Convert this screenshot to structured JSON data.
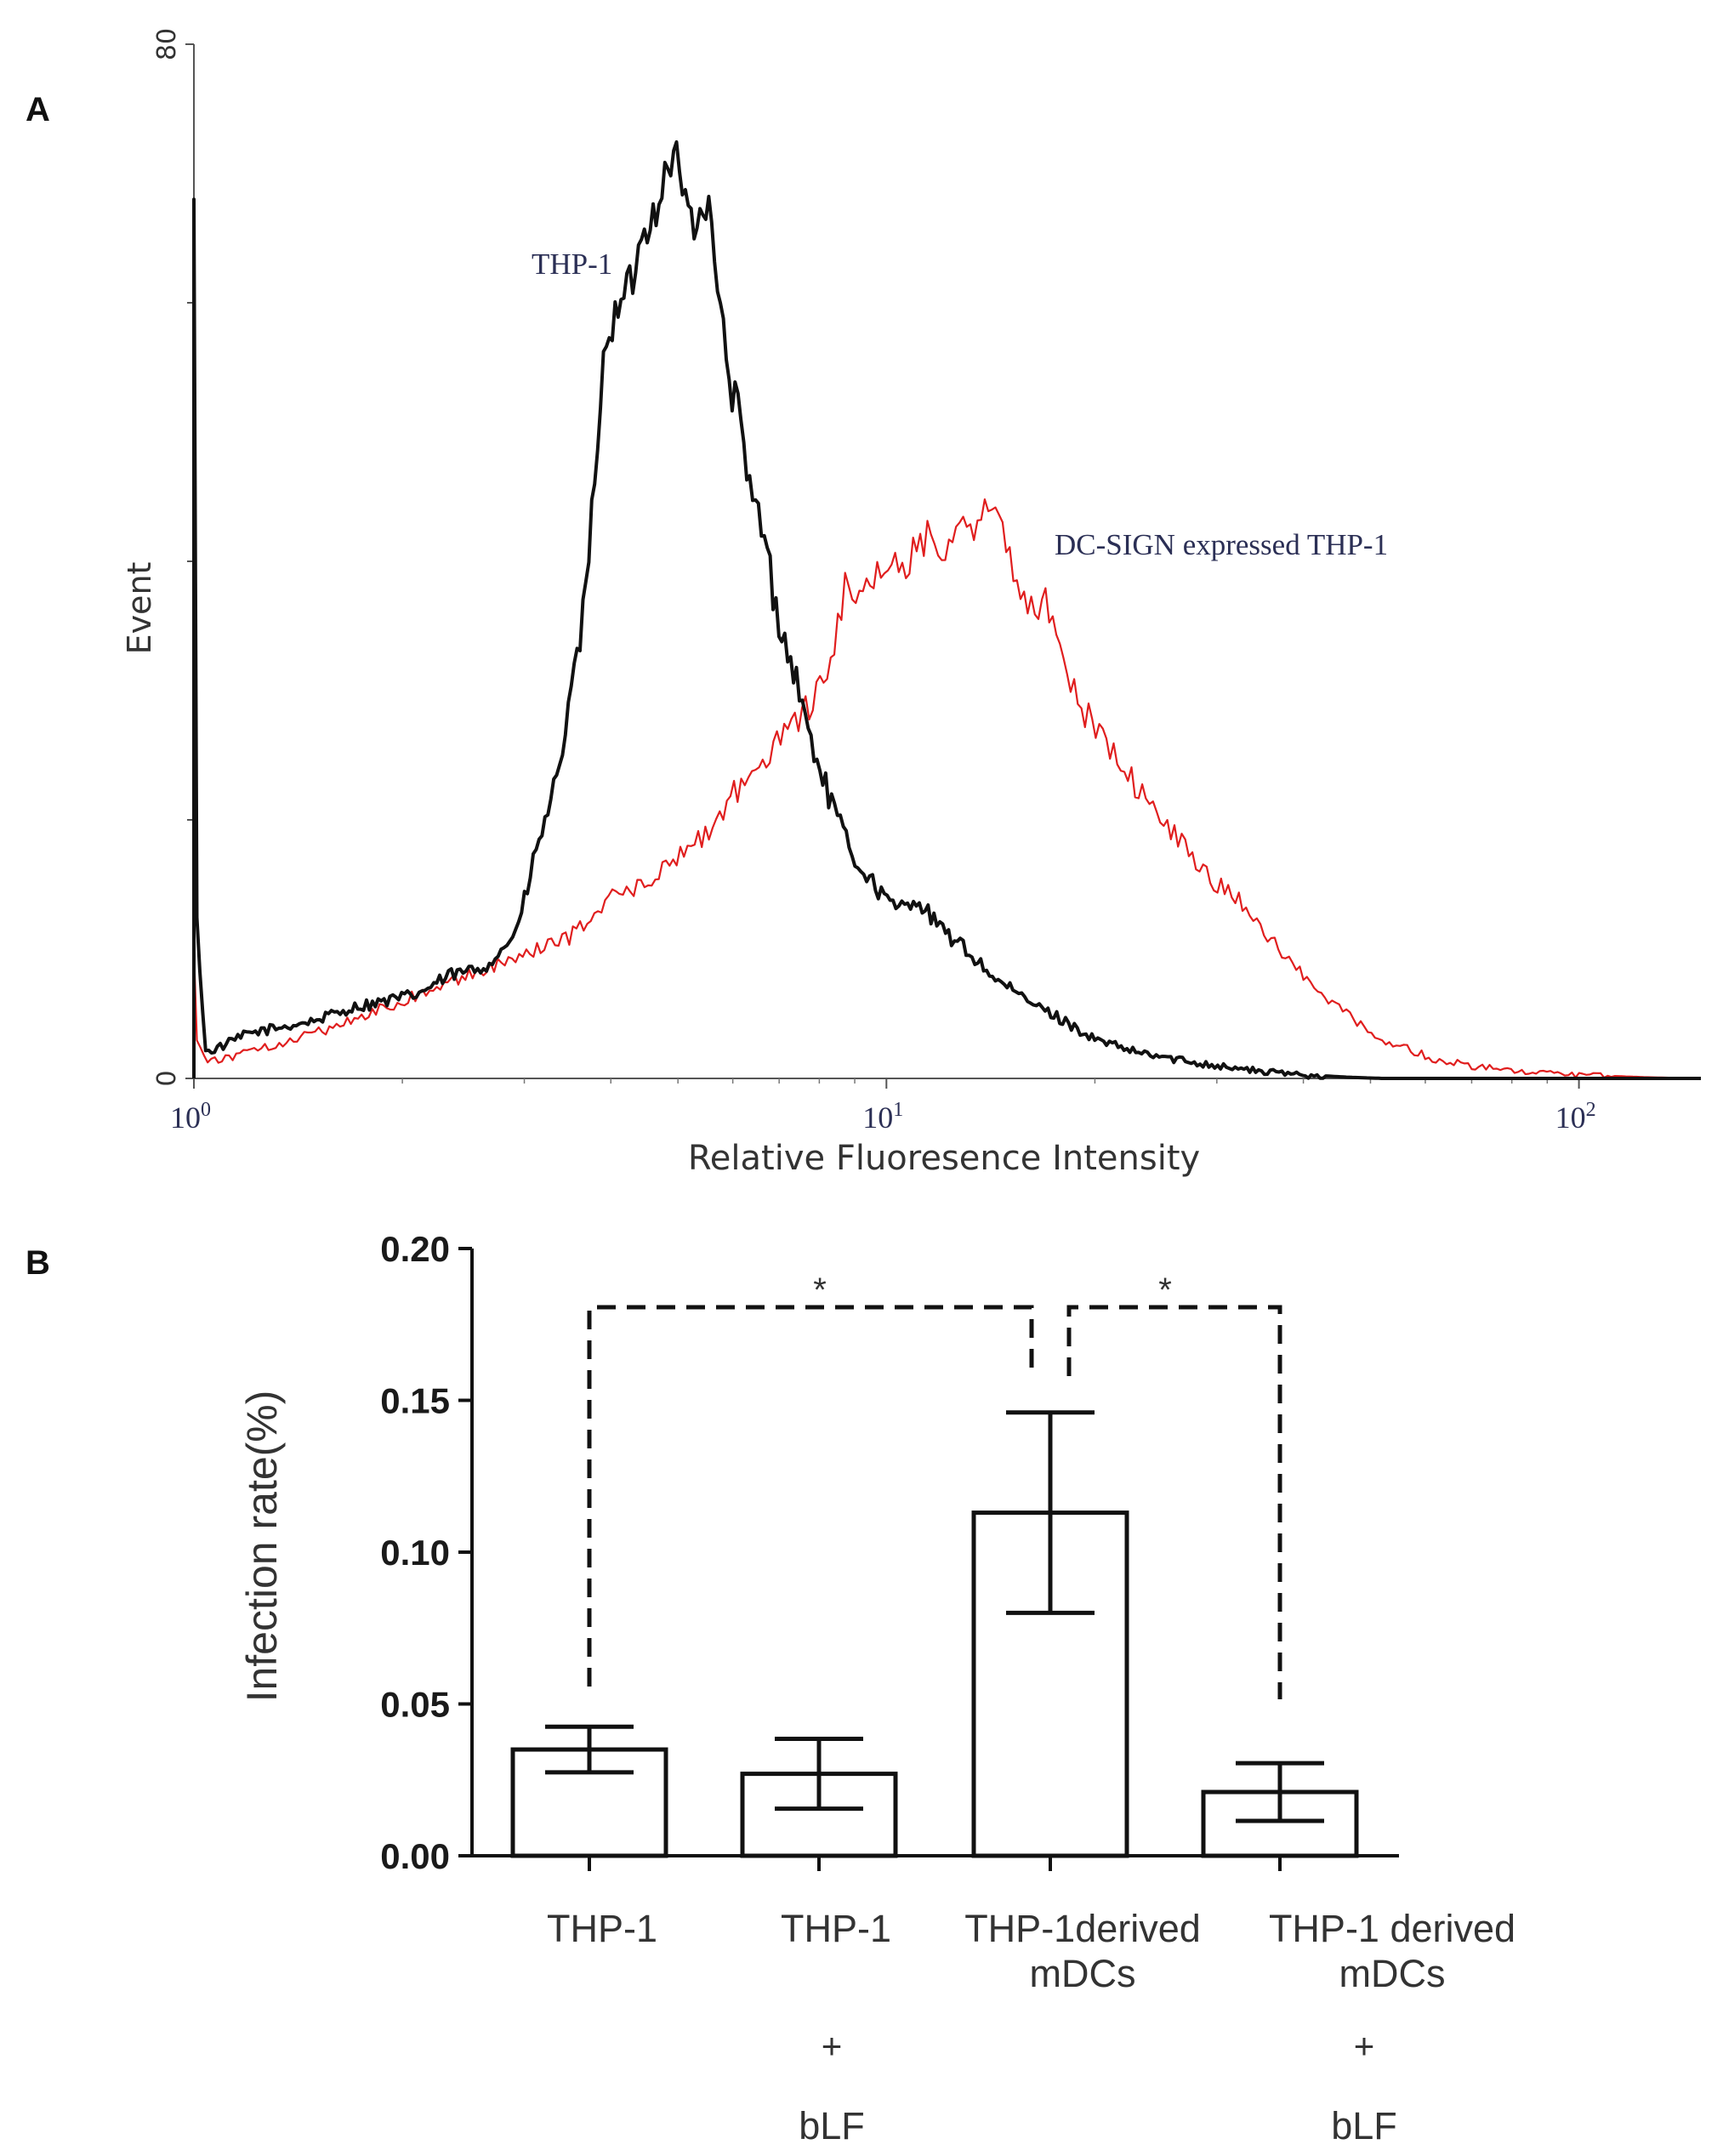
{
  "chart_data": [
    {
      "panel": "A",
      "type": "line",
      "title": "",
      "xlabel": "Relative Fluoresence Intensity",
      "ylabel": "Event",
      "x_scale": "log",
      "xlim": [
        1,
        150
      ],
      "ylim": [
        0,
        80
      ],
      "x_tick_labels": [
        {
          "value": 1,
          "base": "10",
          "exp": "0"
        },
        {
          "value": 10,
          "base": "10",
          "exp": "1"
        },
        {
          "value": 100,
          "base": "10",
          "exp": "2"
        }
      ],
      "y_tick_labels": [
        {
          "value": 0,
          "label": "0"
        },
        {
          "value": 80,
          "label": "80"
        }
      ],
      "y_minor_ticks": [
        20,
        40,
        60
      ],
      "series": [
        {
          "name": "THP-1",
          "color": "#111111",
          "x": [
            1.0,
            1.01,
            1.04,
            1.1,
            1.2,
            1.35,
            1.5,
            1.7,
            1.9,
            2.1,
            2.35,
            2.6,
            2.8,
            2.95,
            3.1,
            3.3,
            3.5,
            3.7,
            3.8,
            3.95,
            4.1,
            4.3,
            4.5,
            4.65,
            4.8,
            4.95,
            5.1,
            5.3,
            5.5,
            5.7,
            5.9,
            6.1,
            6.3,
            6.6,
            6.9,
            7.1,
            7.4,
            7.7,
            8.0,
            8.5,
            9.0,
            9.6,
            10.3,
            11.0,
            12.0,
            13.0,
            14.5,
            16.0,
            18.0,
            20.0,
            23.0,
            26.0,
            30.0,
            35.0,
            40.0,
            46.0,
            52.0,
            60.0
          ],
          "y": [
            68,
            12,
            2,
            2.5,
            3.5,
            4,
            4.5,
            5.5,
            6,
            6.5,
            8,
            8.5,
            10,
            12,
            17,
            22,
            29,
            38,
            48,
            58,
            59,
            62,
            66,
            67.5,
            70,
            72,
            68,
            66,
            68,
            62,
            54,
            52,
            46,
            43,
            37,
            34,
            31,
            27,
            24,
            20,
            17,
            15,
            13,
            14,
            11.5,
            10,
            7.5,
            6,
            4.5,
            3,
            2,
            1.5,
            1,
            0.5,
            0.3,
            0.1,
            0,
            0
          ]
        },
        {
          "name": "DC-SIGN expressed THP-1",
          "color": "#e01e1e",
          "x": [
            1.0,
            1.01,
            1.04,
            1.1,
            1.3,
            1.6,
            2.0,
            2.5,
            3.0,
            3.5,
            4.0,
            4.5,
            5.0,
            5.5,
            6.0,
            6.5,
            7.0,
            7.5,
            8.0,
            8.4,
            8.7,
            9.0,
            9.5,
            10.0,
            10.5,
            11.0,
            11.5,
            12.0,
            12.5,
            13.0,
            13.5,
            14.0,
            14.5,
            15.0,
            15.5,
            16.0,
            16.5,
            17.0,
            17.5,
            18.0,
            19.0,
            20.0,
            22.0,
            24.0,
            26.0,
            28.0,
            30.0,
            32.0,
            35.0,
            38.0,
            42.0,
            46.0,
            50.0,
            55.0,
            62.0,
            70.0,
            80.0,
            100.0,
            125.0,
            150.0
          ],
          "y": [
            10,
            3,
            1.5,
            1.5,
            2.5,
            4,
            6,
            8,
            9.5,
            11,
            14,
            15,
            17,
            19,
            22,
            24,
            26,
            28,
            30,
            34,
            38,
            36,
            38,
            40,
            39,
            41,
            42,
            41,
            43,
            44,
            42,
            45,
            43,
            41,
            38,
            37,
            36,
            38,
            34,
            32,
            29,
            27,
            24,
            21,
            19,
            17,
            15,
            14,
            11.5,
            9,
            7,
            5,
            3.5,
            2.5,
            1.5,
            1,
            0.5,
            0.3,
            0.1,
            0
          ]
        }
      ],
      "annotations": [
        {
          "text": "THP-1",
          "series": "THP-1"
        },
        {
          "text": "DC-SIGN expressed THP-1",
          "series": "DC-SIGN expressed THP-1"
        }
      ]
    },
    {
      "panel": "B",
      "type": "bar",
      "title": "",
      "xlabel": "",
      "ylabel": "Infection rate(%)",
      "ylim": [
        0,
        0.2
      ],
      "y_ticks": [
        "0.00",
        "0.05",
        "0.10",
        "0.15",
        "0.20"
      ],
      "categories": [
        {
          "lines": [
            "THP-1"
          ],
          "modifier": ""
        },
        {
          "lines": [
            "THP-1"
          ],
          "modifier": "bLF"
        },
        {
          "lines": [
            "THP-1derived",
            "mDCs"
          ],
          "modifier": ""
        },
        {
          "lines": [
            "THP-1 derived",
            "mDCs"
          ],
          "modifier": "bLF"
        }
      ],
      "plus_sign": "+",
      "values": [
        0.035,
        0.027,
        0.113,
        0.021
      ],
      "errors": [
        0.0075,
        0.0115,
        0.033,
        0.0095
      ],
      "significance": [
        {
          "from": 0,
          "to": 2,
          "label": "*"
        },
        {
          "from": 2,
          "to": 3,
          "label": "*"
        }
      ]
    }
  ],
  "panel_labels": {
    "a": "A",
    "b": "B"
  }
}
